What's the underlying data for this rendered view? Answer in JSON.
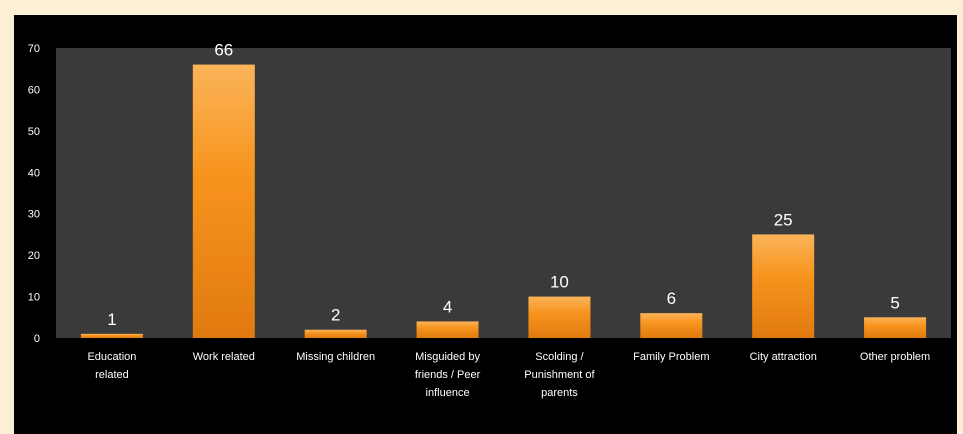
{
  "chart_data": {
    "type": "bar",
    "categories": [
      [
        "Education",
        "related"
      ],
      [
        "Work related"
      ],
      [
        "Missing children"
      ],
      [
        "Misguided by",
        "friends / Peer",
        "influence"
      ],
      [
        "Scolding /",
        "Punishment of",
        "parents"
      ],
      [
        "Family Problem"
      ],
      [
        "City attraction"
      ],
      [
        "Other problem"
      ]
    ],
    "values": [
      1,
      66,
      2,
      4,
      10,
      6,
      25,
      5
    ],
    "data_labels": [
      "1",
      "66",
      "2",
      "4",
      "10",
      "6",
      "25",
      "5"
    ],
    "ylim": [
      0,
      70
    ],
    "yticks": [
      0,
      10,
      20,
      30,
      40,
      50,
      60,
      70
    ],
    "grid": false,
    "legend": "none",
    "title": "",
    "xlabel": "",
    "ylabel": "",
    "colors": {
      "bar_top": "#fbb45a",
      "bar_mid": "#f7941d",
      "bar_bottom": "#e07a10",
      "plot_background": "#3a3a3a",
      "frame_background": "#000000",
      "page_background": "#fbf0d3",
      "text": "#ffffff"
    }
  }
}
